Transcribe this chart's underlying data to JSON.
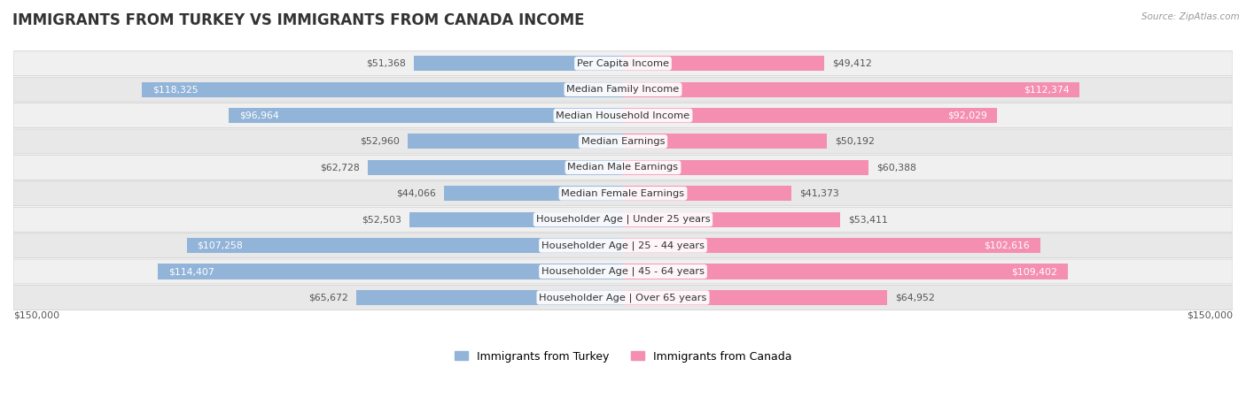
{
  "title": "IMMIGRANTS FROM TURKEY VS IMMIGRANTS FROM CANADA INCOME",
  "source": "Source: ZipAtlas.com",
  "categories": [
    "Per Capita Income",
    "Median Family Income",
    "Median Household Income",
    "Median Earnings",
    "Median Male Earnings",
    "Median Female Earnings",
    "Householder Age | Under 25 years",
    "Householder Age | 25 - 44 years",
    "Householder Age | 45 - 64 years",
    "Householder Age | Over 65 years"
  ],
  "turkey_values": [
    51368,
    118325,
    96964,
    52960,
    62728,
    44066,
    52503,
    107258,
    114407,
    65672
  ],
  "canada_values": [
    49412,
    112374,
    92029,
    50192,
    60388,
    41373,
    53411,
    102616,
    109402,
    64952
  ],
  "turkey_color": "#92b4d8",
  "canada_color": "#f48fb1",
  "turkey_label": "Immigrants from Turkey",
  "canada_label": "Immigrants from Canada",
  "max_val": 150000,
  "background_color": "#ffffff",
  "title_fontsize": 12,
  "label_fontsize": 8.2,
  "value_fontsize": 7.8,
  "legend_fontsize": 9,
  "axis_label": "$150,000",
  "large_threshold": 85000
}
